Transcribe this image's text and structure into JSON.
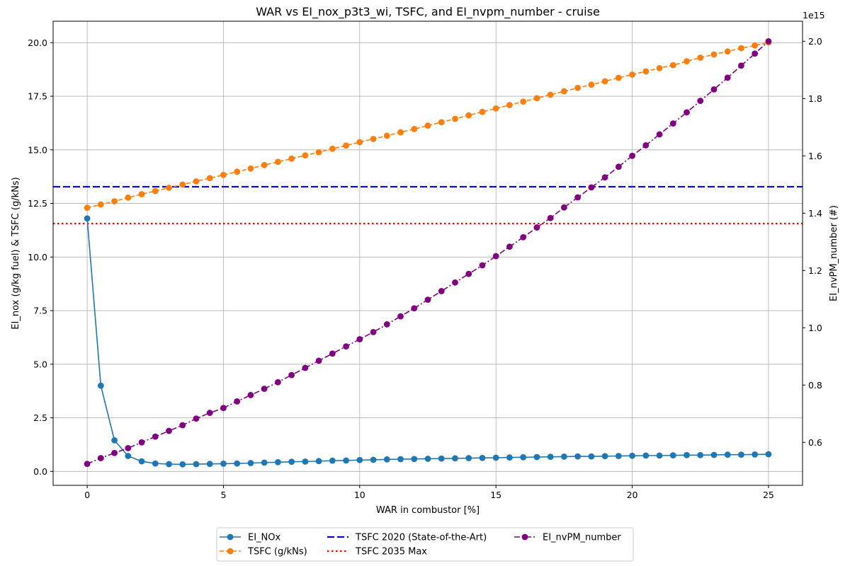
{
  "chart_data": {
    "type": "line",
    "title": "WAR vs EI_nox_p3t3_wi, TSFC, and EI_nvpm_number - cruise",
    "xlabel": "WAR in combustor [%]",
    "ylabel_left": "EI_nox (g/kg fuel) & TSFC (g/kNs)",
    "ylabel_right": "EI_nvPM_number (#)",
    "right_axis_offset_text": "1e15",
    "xlim": [
      -1.25,
      26.25
    ],
    "ylim_left": [
      -0.65,
      21.0
    ],
    "ylim_right": [
      0.45,
      2.07
    ],
    "right_axis_scale": 1000000000000000.0,
    "grid": true,
    "legend_placement": "below-center",
    "x_ticks": [
      {
        "value": 0,
        "label": "0"
      },
      {
        "value": 5,
        "label": "5"
      },
      {
        "value": 10,
        "label": "10"
      },
      {
        "value": 15,
        "label": "15"
      },
      {
        "value": 20,
        "label": "20"
      },
      {
        "value": 25,
        "label": "25"
      }
    ],
    "y_ticks_left": [
      {
        "value": 0,
        "label": "0.0"
      },
      {
        "value": 2.5,
        "label": "2.5"
      },
      {
        "value": 5,
        "label": "5.0"
      },
      {
        "value": 7.5,
        "label": "7.5"
      },
      {
        "value": 10,
        "label": "10.0"
      },
      {
        "value": 12.5,
        "label": "12.5"
      },
      {
        "value": 15,
        "label": "15.0"
      },
      {
        "value": 17.5,
        "label": "17.5"
      },
      {
        "value": 20,
        "label": "20.0"
      }
    ],
    "y_ticks_right": [
      {
        "value": 0.6,
        "label": "0.6"
      },
      {
        "value": 0.8,
        "label": "0.8"
      },
      {
        "value": 1.0,
        "label": "1.0"
      },
      {
        "value": 1.2,
        "label": "1.2"
      },
      {
        "value": 1.4,
        "label": "1.4"
      },
      {
        "value": 1.6,
        "label": "1.6"
      },
      {
        "value": 1.8,
        "label": "1.8"
      },
      {
        "value": 2.0,
        "label": "2.0"
      }
    ],
    "x": [
      0,
      0.5,
      1,
      1.5,
      2,
      2.5,
      3,
      3.5,
      4,
      4.5,
      5,
      5.5,
      6,
      6.5,
      7,
      7.5,
      8,
      8.5,
      9,
      9.5,
      10,
      10.5,
      11,
      11.5,
      12,
      12.5,
      13,
      13.5,
      14,
      14.5,
      15,
      15.5,
      16,
      16.5,
      17,
      17.5,
      18,
      18.5,
      19,
      19.5,
      20,
      20.5,
      21,
      21.5,
      22,
      22.5,
      23,
      23.5,
      24,
      24.5,
      25
    ],
    "series": [
      {
        "name": "EI_NOx",
        "axis": "left",
        "color": "#1f77b4",
        "linestyle": "solid",
        "marker": true,
        "values": [
          11.8,
          4.0,
          1.45,
          0.72,
          0.47,
          0.37,
          0.34,
          0.33,
          0.34,
          0.35,
          0.36,
          0.37,
          0.39,
          0.41,
          0.43,
          0.45,
          0.46,
          0.48,
          0.5,
          0.51,
          0.53,
          0.54,
          0.56,
          0.57,
          0.58,
          0.59,
          0.6,
          0.61,
          0.62,
          0.63,
          0.64,
          0.65,
          0.66,
          0.67,
          0.68,
          0.69,
          0.7,
          0.7,
          0.71,
          0.72,
          0.73,
          0.74,
          0.74,
          0.75,
          0.76,
          0.76,
          0.77,
          0.78,
          0.78,
          0.79,
          0.8
        ]
      },
      {
        "name": "TSFC (g/kNs)",
        "axis": "left",
        "color": "#ff7f0e",
        "linestyle": "dashed",
        "marker": true,
        "values": [
          12.3,
          12.45,
          12.6,
          12.77,
          12.93,
          13.08,
          13.23,
          13.38,
          13.53,
          13.68,
          13.83,
          13.98,
          14.13,
          14.29,
          14.44,
          14.59,
          14.74,
          14.89,
          15.05,
          15.2,
          15.36,
          15.51,
          15.66,
          15.82,
          15.97,
          16.13,
          16.29,
          16.45,
          16.61,
          16.77,
          16.93,
          17.09,
          17.25,
          17.41,
          17.57,
          17.73,
          17.89,
          18.04,
          18.2,
          18.36,
          18.51,
          18.66,
          18.81,
          18.95,
          19.13,
          19.3,
          19.45,
          19.59,
          19.74,
          19.87,
          20.01
        ]
      },
      {
        "name": "TSFC 2020 (State-of-the-Art)",
        "axis": "left",
        "color": "#0000ee",
        "linestyle": "dashed-hline",
        "marker": false,
        "constant": 13.28
      },
      {
        "name": "TSFC 2035 Max",
        "axis": "left",
        "color": "#ff0000",
        "linestyle": "dotted-hline",
        "marker": false,
        "constant": 11.56
      },
      {
        "name": "EI_nvPM_number",
        "axis": "right",
        "color": "#800080",
        "linestyle": "dashdot",
        "marker": true,
        "values": [
          0.525,
          0.545,
          0.563,
          0.58,
          0.6,
          0.62,
          0.64,
          0.66,
          0.683,
          0.703,
          0.72,
          0.743,
          0.765,
          0.787,
          0.81,
          0.835,
          0.86,
          0.885,
          0.91,
          0.935,
          0.96,
          0.985,
          1.012,
          1.04,
          1.068,
          1.098,
          1.128,
          1.158,
          1.188,
          1.218,
          1.25,
          1.283,
          1.316,
          1.35,
          1.383,
          1.42,
          1.455,
          1.49,
          1.525,
          1.562,
          1.6,
          1.637,
          1.675,
          1.713,
          1.752,
          1.792,
          1.832,
          1.873,
          1.915,
          1.957,
          2.0
        ]
      }
    ],
    "legend_layout": [
      [
        "EI_NOx",
        "TSFC (g/kNs)"
      ],
      [
        "TSFC 2020 (State-of-the-Art)",
        "TSFC 2035 Max"
      ],
      [
        "EI_nvPM_number"
      ]
    ]
  }
}
